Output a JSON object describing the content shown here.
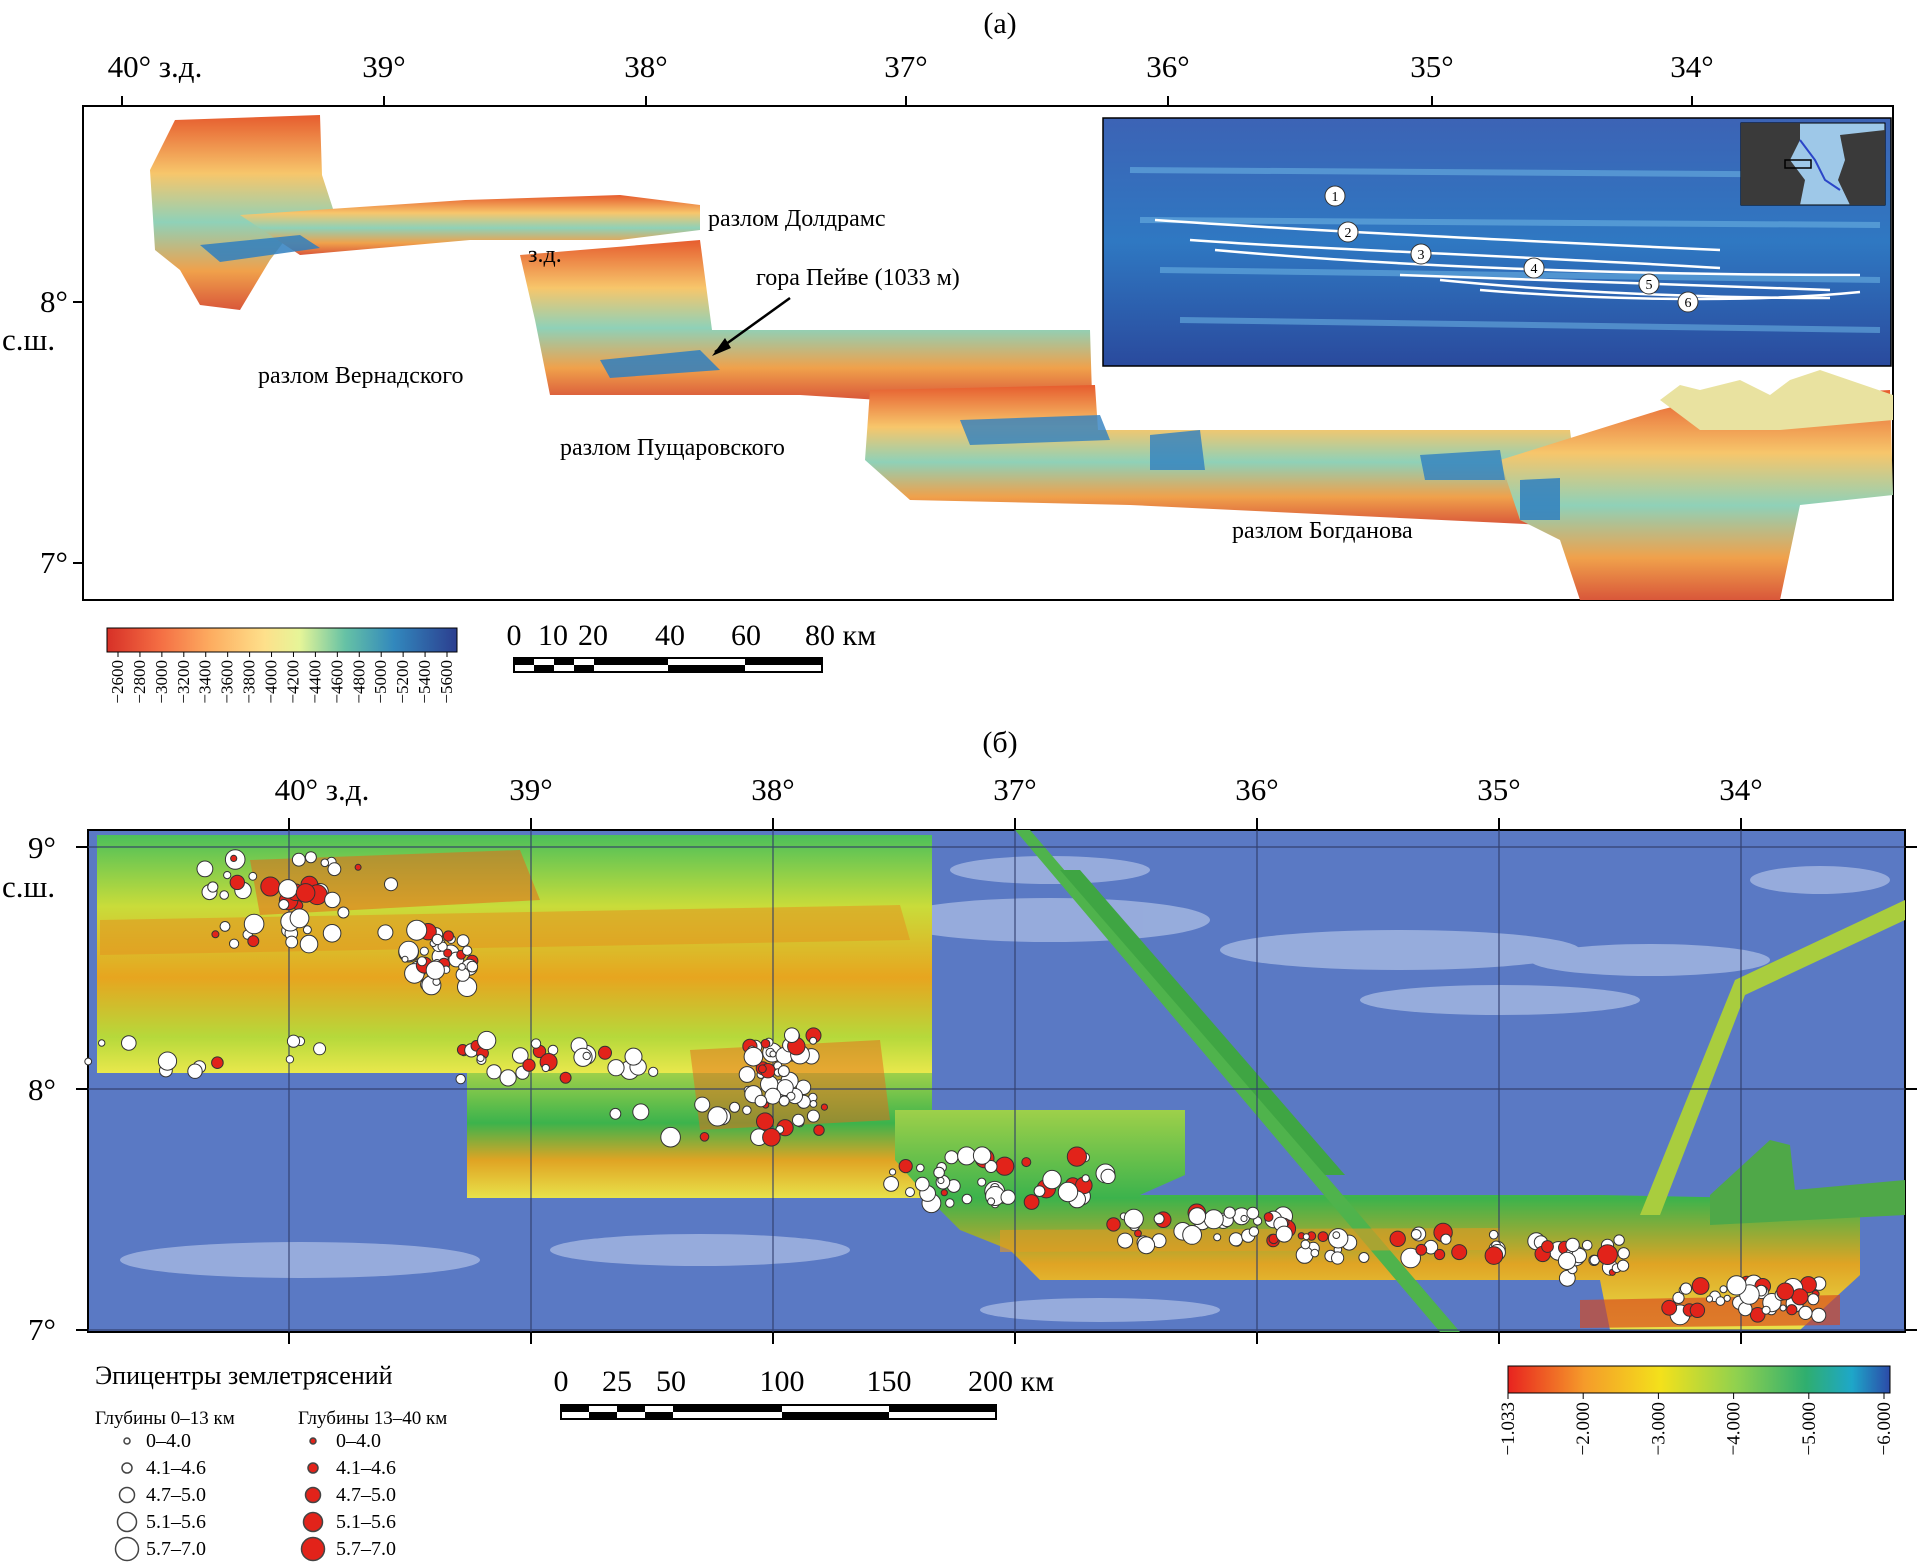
{
  "panel_a": {
    "label": "(а)",
    "lon_labels": [
      "40° з.д.",
      "39°",
      "38°",
      "37°",
      "36°",
      "35°",
      "34°"
    ],
    "lat_labels": [
      {
        "main": "8°",
        "sub": "с.ш."
      },
      {
        "main": "7°",
        "sub": ""
      }
    ],
    "annotations": [
      "разлом Долдрамс",
      "з.д.",
      "гора Пейве (1033 м)",
      "разлом Вернадского",
      "разлом Пущаровского",
      "разлом Богданова"
    ],
    "inset_fault_numbers": [
      "1",
      "2",
      "3",
      "4",
      "5",
      "6"
    ],
    "colorbar": {
      "ticks": [
        "−2600",
        "−2800",
        "−3000",
        "−3200",
        "−3400",
        "−3600",
        "−3800",
        "−4000",
        "−4200",
        "−4400",
        "−4600",
        "−4800",
        "−5000",
        "−5200",
        "−5400",
        "−5600"
      ],
      "colors": [
        "#d73027",
        "#f46d43",
        "#fdae61",
        "#fee08b",
        "#e6f598",
        "#abdda4",
        "#66c2a5",
        "#3288bd",
        "#2c3e8f"
      ]
    },
    "scalebar": {
      "labels": [
        "0",
        "10",
        "20",
        "40",
        "60",
        "80 км"
      ]
    }
  },
  "panel_b": {
    "label": "(б)",
    "lon_labels": [
      "40° з.д.",
      "39°",
      "38°",
      "37°",
      "36°",
      "35°",
      "34°"
    ],
    "lat_labels": [
      {
        "main": "9°",
        "sub": "с.ш."
      },
      {
        "main": "8°",
        "sub": ""
      },
      {
        "main": "7°",
        "sub": ""
      }
    ],
    "scalebar": {
      "labels": [
        "0",
        "25",
        "50",
        "100",
        "150",
        "200 км"
      ]
    },
    "colorbar": {
      "ticks": [
        "−1.033",
        "−2.000",
        "−3.000",
        "−4.000",
        "−5.000",
        "−6.000"
      ],
      "colors": [
        "#e8231f",
        "#f59b2a",
        "#f3e11b",
        "#8fd14f",
        "#2fae6f",
        "#1ea7c9",
        "#2c4aa8"
      ]
    },
    "legend": {
      "title": "Эпицентры землетрясений",
      "shallow_header": "Глубины 0–13 км",
      "deep_header": "Глубины 13–40 км",
      "classes": [
        "0–4.0",
        "4.1–4.6",
        "4.7–5.0",
        "5.1–5.6",
        "5.7–7.0"
      ],
      "shallow_color": "#ffffff",
      "deep_color": "#e2231a"
    }
  }
}
